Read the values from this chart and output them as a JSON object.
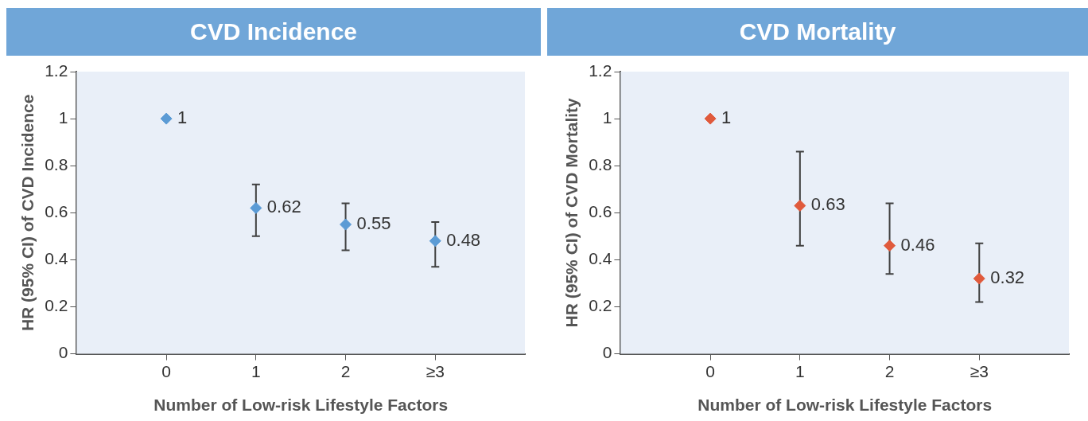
{
  "chart_data": [
    {
      "type": "scatter",
      "title": "CVD Incidence",
      "xlabel": "Number of Low-risk Lifestyle Factors",
      "ylabel": "HR (95% CI) of CVD Incidence",
      "categories": [
        "0",
        "1",
        "2",
        "≥3"
      ],
      "series": [
        {
          "color": "#5b9bd5",
          "values": [
            1,
            0.62,
            0.55,
            0.48
          ],
          "errors": [
            null,
            [
              0.5,
              0.72
            ],
            [
              0.44,
              0.64
            ],
            [
              0.37,
              0.56
            ]
          ]
        }
      ],
      "ylim": [
        0,
        1.2
      ],
      "yticks": [
        0,
        0.2,
        0.4,
        0.6,
        0.8,
        1,
        1.2
      ],
      "marker": "diamond",
      "data_labels": true,
      "legend": false
    },
    {
      "type": "scatter",
      "title": "CVD Mortality",
      "xlabel": "Number of Low-risk Lifestyle Factors",
      "ylabel": "HR (95% CI) of CVD Mortality",
      "categories": [
        "0",
        "1",
        "2",
        "≥3"
      ],
      "series": [
        {
          "color": "#e05a3c",
          "values": [
            1,
            0.63,
            0.46,
            0.32
          ],
          "errors": [
            null,
            [
              0.46,
              0.86
            ],
            [
              0.34,
              0.64
            ],
            [
              0.22,
              0.47
            ]
          ]
        }
      ],
      "ylim": [
        0,
        1.2
      ],
      "yticks": [
        0,
        0.2,
        0.4,
        0.6,
        0.8,
        1,
        1.2
      ],
      "marker": "diamond",
      "data_labels": true,
      "legend": false
    }
  ]
}
